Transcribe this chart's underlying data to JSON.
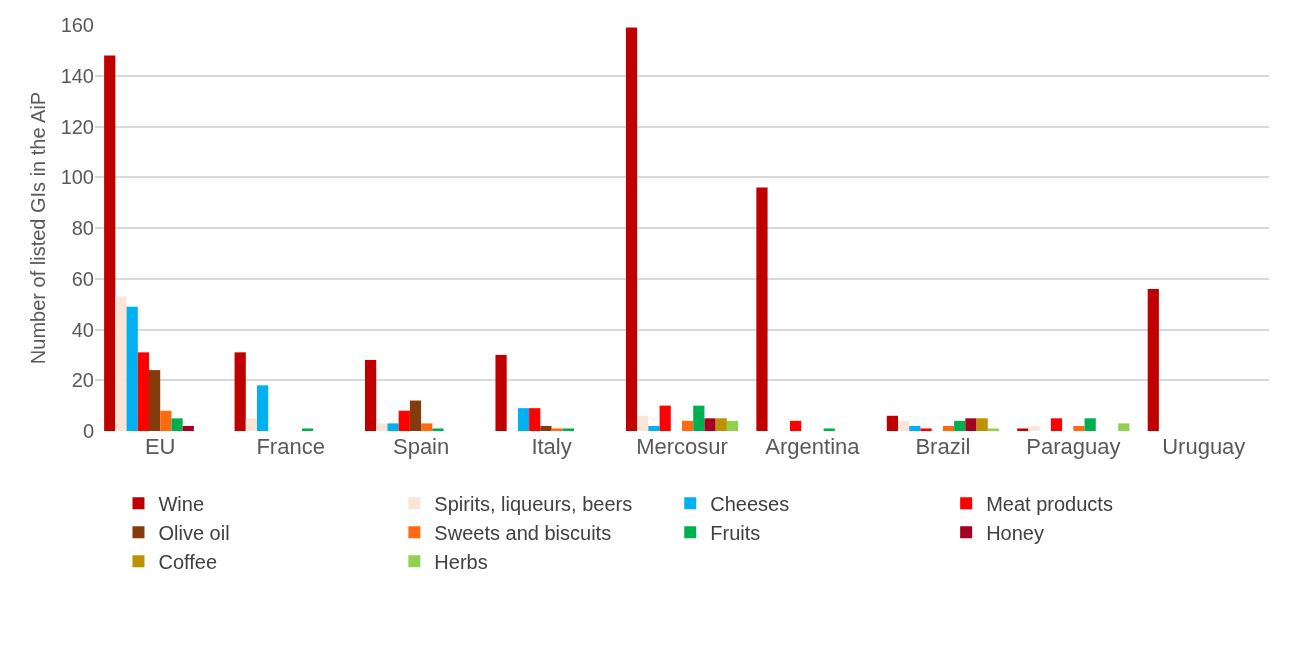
{
  "chart_data": {
    "type": "bar",
    "ylabel": "Number of listed GIs in the AiP",
    "categories": [
      "EU",
      "France",
      "Spain",
      "Italy",
      "Mercosur",
      "Argentina",
      "Brazil",
      "Paraguay",
      "Uruguay"
    ],
    "series": [
      {
        "name": "Wine",
        "color": "#c00000",
        "values": [
          148,
          31,
          28,
          30,
          159,
          96,
          6,
          1,
          56
        ]
      },
      {
        "name": "Spirits, liqueurs, beers",
        "color": "#fbe5d6",
        "values": [
          53,
          5,
          3,
          0,
          6,
          0,
          4,
          2,
          0
        ]
      },
      {
        "name": "Cheeses",
        "color": "#00b0f0",
        "values": [
          49,
          18,
          3,
          9,
          2,
          0,
          2,
          0,
          0
        ]
      },
      {
        "name": "Meat products",
        "color": "#ff0000",
        "values": [
          31,
          0,
          8,
          9,
          10,
          4,
          1,
          5,
          0
        ]
      },
      {
        "name": "Olive oil",
        "color": "#843c0c",
        "values": [
          24,
          0,
          12,
          2,
          0,
          0,
          0,
          0,
          0
        ]
      },
      {
        "name": "Sweets and biscuits",
        "color": "#ff6a10",
        "values": [
          8,
          0,
          3,
          1,
          4,
          0,
          2,
          2,
          0
        ]
      },
      {
        "name": "Fruits",
        "color": "#00b050",
        "values": [
          5,
          1,
          1,
          1,
          10,
          1,
          4,
          5,
          0
        ]
      },
      {
        "name": "Honey",
        "color": "#a50021",
        "values": [
          2,
          0,
          0,
          0,
          5,
          0,
          5,
          0,
          0
        ]
      },
      {
        "name": "Coffee",
        "color": "#bf9000",
        "values": [
          0,
          0,
          0,
          0,
          5,
          0,
          5,
          0,
          0
        ]
      },
      {
        "name": "Herbs",
        "color": "#92d050",
        "values": [
          0,
          0,
          0,
          0,
          4,
          0,
          1,
          3,
          0
        ]
      }
    ],
    "ylim": [
      0,
      160
    ],
    "yticks": [
      0,
      20,
      40,
      60,
      80,
      100,
      120,
      140,
      160
    ],
    "grid": "y",
    "legend": "bottom"
  }
}
